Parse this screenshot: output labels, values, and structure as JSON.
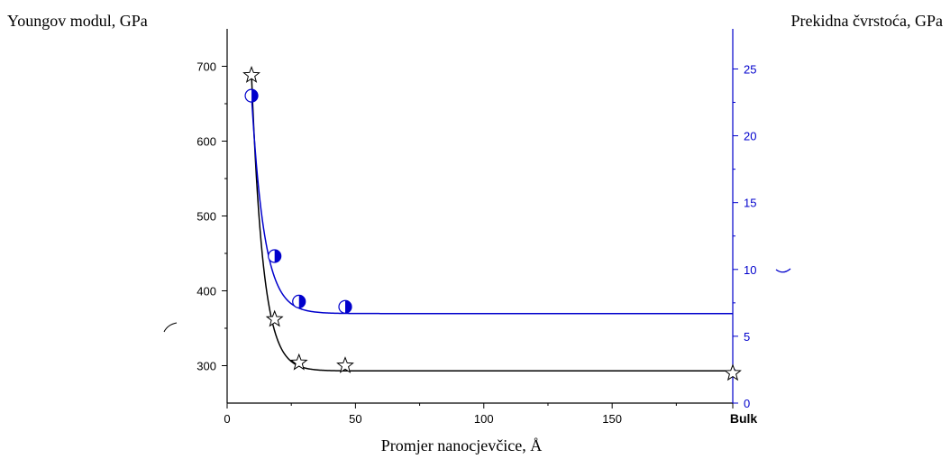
{
  "chart_data": {
    "type": "line",
    "title": "",
    "xlabel": "Promjer nanocjevčice, Å",
    "ylabel_left": "Youngov modul, GPa",
    "ylabel_right": "Prekidna čvrstoća, GPa",
    "xlim": [
      0,
      197
    ],
    "ylim_left": [
      250,
      750
    ],
    "ylim_right": [
      0,
      28
    ],
    "x_ticks": [
      {
        "value": 0,
        "label": "0"
      },
      {
        "value": 50,
        "label": "50"
      },
      {
        "value": 100,
        "label": "100"
      },
      {
        "value": 150,
        "label": "150"
      },
      {
        "value": 197,
        "label": "Bulk"
      }
    ],
    "y_ticks_left": [
      {
        "value": 300,
        "label": "300"
      },
      {
        "value": 400,
        "label": "400"
      },
      {
        "value": 500,
        "label": "500"
      },
      {
        "value": 600,
        "label": "600"
      },
      {
        "value": 700,
        "label": "700"
      }
    ],
    "y_ticks_right": [
      {
        "value": 0,
        "label": "0"
      },
      {
        "value": 5,
        "label": "5"
      },
      {
        "value": 10,
        "label": "10"
      },
      {
        "value": 15,
        "label": "15"
      },
      {
        "value": 20,
        "label": "20"
      },
      {
        "value": 25,
        "label": "25"
      }
    ],
    "grid": false,
    "legend": "none",
    "series": [
      {
        "axis": "left",
        "marker": "star",
        "color": "#000000",
        "points": [
          {
            "x": 9.5,
            "y": 688
          },
          {
            "x": 18.5,
            "y": 362
          },
          {
            "x": 28,
            "y": 304
          },
          {
            "x": 46,
            "y": 300
          },
          {
            "x": 197,
            "y": 290
          }
        ],
        "fit": {
          "base": 293,
          "amp": 395,
          "x0": 9.5,
          "decay": 4.5,
          "x_end": 197
        }
      },
      {
        "axis": "right",
        "marker": "half-filled-circle",
        "color": "#0000cc",
        "points": [
          {
            "x": 9.5,
            "y": 23.0
          },
          {
            "x": 18.5,
            "y": 11.0
          },
          {
            "x": 28,
            "y": 7.6
          },
          {
            "x": 46,
            "y": 7.2
          }
        ],
        "fit": {
          "base": 6.7,
          "amp": 16.3,
          "x0": 9.5,
          "decay": 5.0,
          "x_end": 197
        }
      }
    ]
  }
}
